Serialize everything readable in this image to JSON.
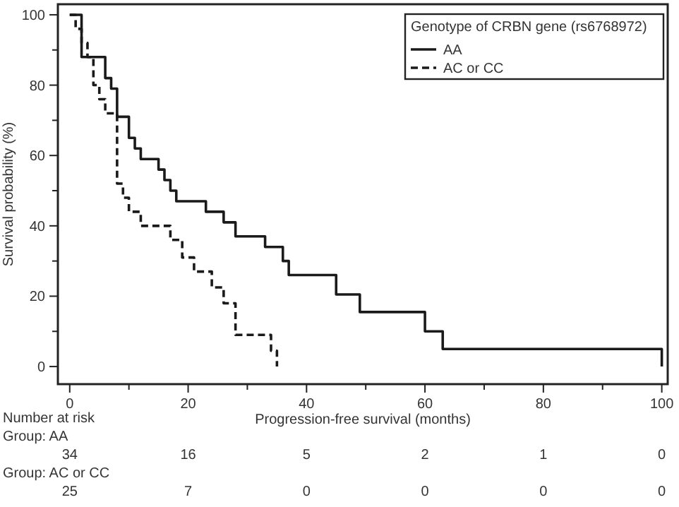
{
  "chart_data": {
    "type": "step",
    "xlabel": "Progression-free survival (months)",
    "ylabel": "Survival probability (%)",
    "legend_title": "Genotype of CRBN gene (rs6768972)",
    "legend": "top right",
    "grid": false,
    "xlim": [
      -2,
      101
    ],
    "ylim": [
      -5,
      103
    ],
    "xticks": [
      0,
      {
        "value": 10,
        "label": null
      },
      20,
      {
        "value": 30,
        "label": null
      },
      40,
      {
        "value": 50,
        "label": null
      },
      60,
      {
        "value": 70,
        "label": null
      },
      80,
      {
        "value": 90,
        "label": null
      },
      100
    ],
    "yticks": [
      0,
      {
        "value": 10,
        "label": null
      },
      20,
      {
        "value": 30,
        "label": null
      },
      40,
      {
        "value": 50,
        "label": null
      },
      60,
      {
        "value": 70,
        "label": null
      },
      80,
      {
        "value": 90,
        "label": null
      },
      100
    ],
    "series": [
      {
        "name": "AA",
        "color": "#1a1a1a",
        "line_style": "solid",
        "x": [
          0,
          2,
          6,
          7,
          8,
          10,
          11,
          12,
          15,
          16,
          17,
          18,
          23,
          26,
          28,
          33,
          36,
          37,
          45,
          49,
          60,
          63,
          100
        ],
        "values": [
          100,
          88,
          82,
          79,
          71,
          65,
          62,
          59,
          56,
          53,
          50,
          47,
          44,
          41,
          37,
          34,
          30,
          26,
          20.5,
          15.5,
          10,
          5,
          0
        ]
      },
      {
        "name": "AC or CC",
        "color": "#1a1a1a",
        "line_style": "dashed",
        "x": [
          0,
          1,
          2,
          3,
          4,
          5,
          6,
          8,
          9,
          10,
          12,
          17,
          19,
          21,
          24,
          26,
          28,
          34,
          35
        ],
        "values": [
          100,
          96,
          92,
          88,
          80,
          76,
          72,
          52,
          48,
          44,
          40,
          36,
          31,
          27,
          22.5,
          18,
          9,
          4.5,
          0
        ]
      }
    ],
    "annotations": [
      "Number at risk",
      "Group: AA",
      "34",
      "16",
      "5",
      "2",
      "1",
      "0",
      "Group: AC or CC",
      "25",
      "7",
      "0",
      "0",
      "0",
      "0"
    ]
  }
}
